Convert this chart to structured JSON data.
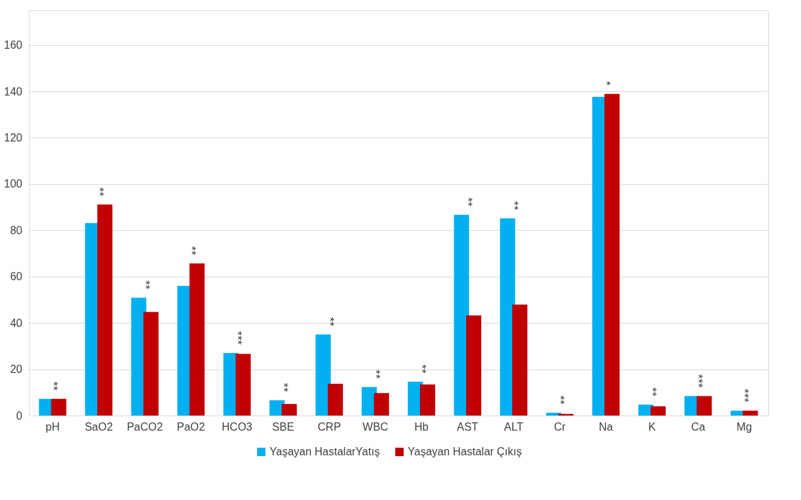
{
  "chart_data": {
    "type": "bar",
    "categories": [
      "pH",
      "SaO2",
      "PaCO2",
      "PaO2",
      "HCO3",
      "SBE",
      "CRP",
      "WBC",
      "Hb",
      "AST",
      "ALT",
      "Cr",
      "Na",
      "K",
      "Ca",
      "Mg"
    ],
    "series": [
      {
        "name": "Yaşayan HastalarYatış",
        "color": "#00b0f0",
        "values": [
          7.2,
          83.1,
          50.9,
          56.0,
          27.0,
          6.6,
          35.0,
          12.3,
          14.6,
          86.7,
          85.1,
          1.2,
          137.6,
          4.7,
          8.4,
          2.1
        ]
      },
      {
        "name": "Yaşayan Hastalar Çıkış",
        "color": "#c00000",
        "values": [
          7.2,
          91.1,
          44.7,
          65.7,
          26.6,
          5.0,
          13.7,
          9.7,
          13.4,
          43.2,
          47.9,
          0.7,
          138.9,
          4.0,
          8.4,
          2.1
        ]
      }
    ],
    "ylim": [
      0,
      175
    ],
    "yticks": [
      0,
      20,
      40,
      60,
      80,
      100,
      120,
      140,
      160
    ],
    "grid": "y",
    "legend": "bottom",
    "annotations": [
      "**",
      "**",
      "**",
      "**",
      "***",
      "**",
      "**",
      "**",
      "**",
      "**",
      "**",
      "**",
      "*",
      "**",
      "***",
      "***"
    ]
  }
}
